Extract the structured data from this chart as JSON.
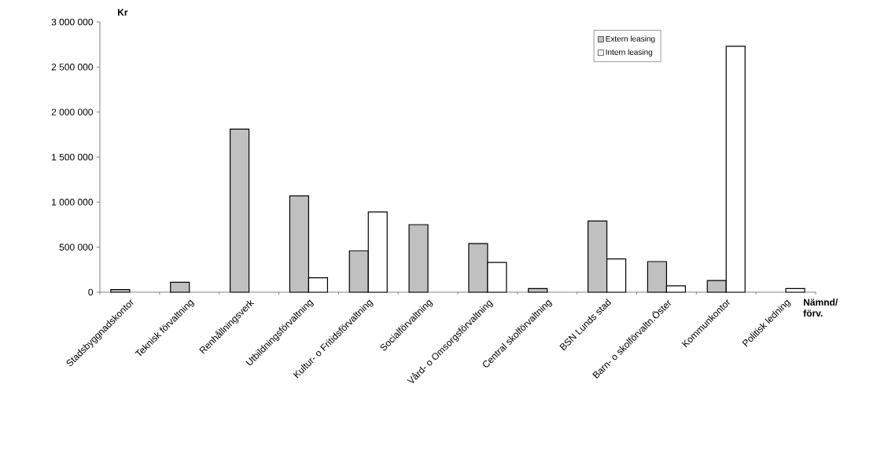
{
  "chart_data": {
    "type": "bar",
    "ylabel": "Kr",
    "xlabel": "Nämnd/ förv.",
    "categories": [
      "Stadsbyggnadskontor",
      "Teknisk förvaltning",
      "Renhållningsverk",
      "Utbildningsförvaltning",
      "Kultur- o Fritidsförvaltning",
      "Socialförvaltning",
      "Vård- o Omsorgsförvaltning",
      "Central skolförvaltning",
      "BSN Lunds stad",
      "Barn- o skolförvaltn.Öster",
      "Kommunkontor",
      "Politisk ledning"
    ],
    "series": [
      {
        "name": "Extern leasing",
        "color": "#c0c0c0",
        "values": [
          30000,
          110000,
          1810000,
          1070000,
          460000,
          750000,
          540000,
          40000,
          790000,
          340000,
          130000,
          null
        ]
      },
      {
        "name": "Intern leasing",
        "color": "#ffffff",
        "values": [
          null,
          null,
          null,
          160000,
          890000,
          null,
          330000,
          null,
          370000,
          70000,
          2730000,
          40000
        ]
      }
    ],
    "ylim": [
      0,
      3000000
    ],
    "yticks": [
      {
        "value": 0,
        "label": "0"
      },
      {
        "value": 500000,
        "label": "500 000"
      },
      {
        "value": 1000000,
        "label": "1 000 000"
      },
      {
        "value": 1500000,
        "label": "1 500 000"
      },
      {
        "value": 2000000,
        "label": "2 000 000"
      },
      {
        "value": 2500000,
        "label": "2 500 000"
      },
      {
        "value": 3000000,
        "label": "3 000 000"
      }
    ],
    "grid": false,
    "legend": "top right"
  }
}
